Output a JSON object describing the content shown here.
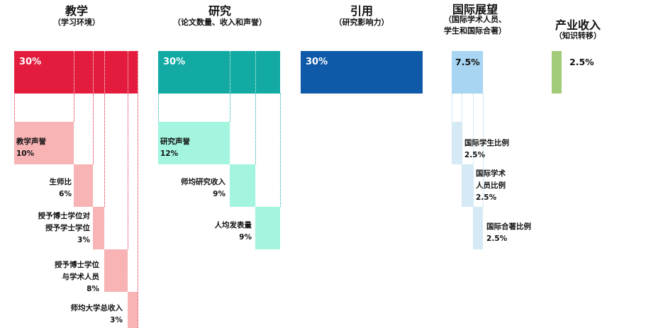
{
  "colors": {
    "teaching": "#e31c3d",
    "teaching_light": "#f8b3b5",
    "research": "#12aaa3",
    "research_light": "#a3f5e0",
    "citations": "#0e5aa8",
    "international": "#a7d5f2",
    "international_light": "#d6eaf5",
    "industry": "#a3cc7a"
  },
  "pillars": [
    {
      "title": "教学",
      "subtitle": "（学习环境）",
      "weight": "30%"
    },
    {
      "title": "研究",
      "subtitle": "（论文数量、收入和声誉）",
      "weight": "30%"
    },
    {
      "title": "引用",
      "subtitle": "（研究影响力）",
      "weight": "30%"
    },
    {
      "title": "国际展望",
      "subtitle_lines": [
        "（国际学术人员、",
        "学生和国际合著）"
      ],
      "weight": "7.5%"
    },
    {
      "title": "产业收入",
      "subtitle": "（知识转移）",
      "weight": "2.5%"
    }
  ],
  "teaching_metrics": [
    {
      "lines": [
        "教学声誉"
      ],
      "weight": "10%"
    },
    {
      "lines": [
        "生师比"
      ],
      "weight": "6%"
    },
    {
      "lines": [
        "授予博士学位对",
        "授予学士学位"
      ],
      "weight": "3%"
    },
    {
      "lines": [
        "授予博士学位",
        "与学术人员"
      ],
      "weight": "8%"
    },
    {
      "lines": [
        "师均大学总收入"
      ],
      "weight": "3%"
    }
  ],
  "research_metrics": [
    {
      "lines": [
        "研究声誉"
      ],
      "weight": "12%"
    },
    {
      "lines": [
        "师均研究收入"
      ],
      "weight": "9%"
    },
    {
      "lines": [
        "人均发表量"
      ],
      "weight": "9%"
    }
  ],
  "international_metrics": [
    {
      "lines": [
        "国际学生比例"
      ],
      "weight": "2.5%"
    },
    {
      "lines": [
        "国际学术",
        "人员比例"
      ],
      "weight": "2.5%"
    },
    {
      "lines": [
        "国际合著比例"
      ],
      "weight": "2.5%"
    }
  ]
}
